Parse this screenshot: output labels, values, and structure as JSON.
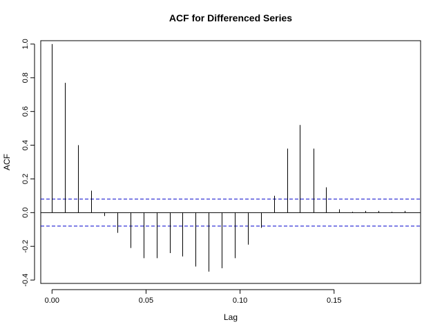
{
  "chart_data": {
    "type": "bar",
    "title": "ACF for Differenced Series",
    "xlabel": "Lag",
    "ylabel": "ACF",
    "xlim": [
      -0.006,
      0.196
    ],
    "ylim": [
      -0.42,
      1.02
    ],
    "x_ticks": [
      0.0,
      0.05,
      0.1,
      0.15
    ],
    "x_tick_labels": [
      "0.00",
      "0.05",
      "0.10",
      "0.15"
    ],
    "y_ticks": [
      -0.4,
      -0.2,
      0.0,
      0.2,
      0.4,
      0.6,
      0.8,
      1.0
    ],
    "y_tick_labels": [
      "-0.4",
      "-0.2",
      "0.0",
      "0.2",
      "0.4",
      "0.6",
      "0.8",
      "1.0"
    ],
    "confidence_bound": 0.08,
    "confidence_color": "#0000cc",
    "bar_color": "#000000",
    "lags": [
      0.0,
      0.0069,
      0.0139,
      0.0208,
      0.0278,
      0.0347,
      0.0417,
      0.0486,
      0.0556,
      0.0625,
      0.0694,
      0.0764,
      0.0833,
      0.0903,
      0.0972,
      0.1042,
      0.1111,
      0.1181,
      0.125,
      0.1319,
      0.1389,
      0.1458,
      0.1528,
      0.1597,
      0.1667,
      0.1736,
      0.1806,
      0.1875
    ],
    "values": [
      1.0,
      0.77,
      0.4,
      0.13,
      -0.02,
      -0.12,
      -0.21,
      -0.27,
      -0.27,
      -0.24,
      -0.26,
      -0.32,
      -0.35,
      -0.33,
      -0.27,
      -0.19,
      -0.09,
      0.1,
      0.38,
      0.52,
      0.38,
      0.15,
      0.02,
      0.005,
      0.01,
      0.01,
      0.005,
      0.01
    ]
  }
}
